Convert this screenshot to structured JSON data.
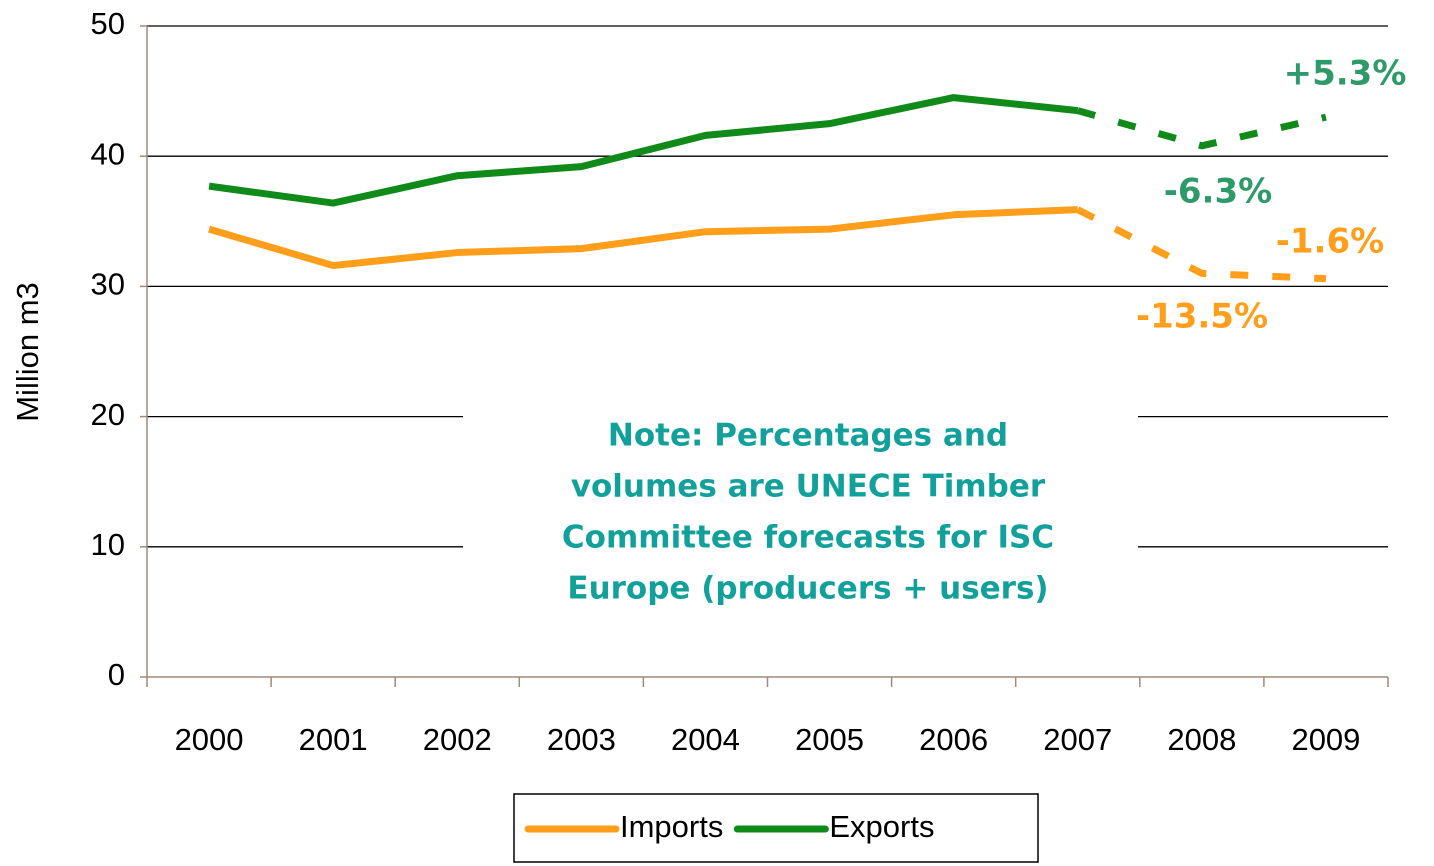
{
  "chart_data": {
    "type": "line",
    "y_axis_label": "Million m3",
    "categories": [
      "2000",
      "2001",
      "2002",
      "2003",
      "2004",
      "2005",
      "2006",
      "2007",
      "2008",
      "2009"
    ],
    "series": [
      {
        "name": "Imports",
        "color": "#ff9e1b",
        "values": [
          34.4,
          31.6,
          32.6,
          32.9,
          34.2,
          34.4,
          35.5,
          35.9,
          31.0,
          30.6
        ]
      },
      {
        "name": "Exports",
        "color": "#108a18",
        "values": [
          37.7,
          36.4,
          38.5,
          39.2,
          41.6,
          42.5,
          44.5,
          43.5,
          40.8,
          43.0
        ]
      }
    ],
    "forecast_from": 7,
    "ylim": [
      0,
      50
    ],
    "yticks": [
      0,
      10,
      20,
      30,
      40,
      50
    ],
    "grid": true,
    "legend": "bottom",
    "annotations": [
      {
        "text": "+5.3%",
        "color": "#2e9a6a"
      },
      {
        "text": "-6.3%",
        "color": "#2e9a6a"
      },
      {
        "text": "-1.6%",
        "color": "#ff9e1b"
      },
      {
        "text": "-13.5%",
        "color": "#ff9e1b"
      }
    ],
    "note": {
      "color": "#12a09a",
      "lines": [
        "Note: Percentages and",
        "volumes are UNECE Timber",
        "Committee forecasts for ISC",
        "Europe (producers + users)"
      ]
    }
  }
}
